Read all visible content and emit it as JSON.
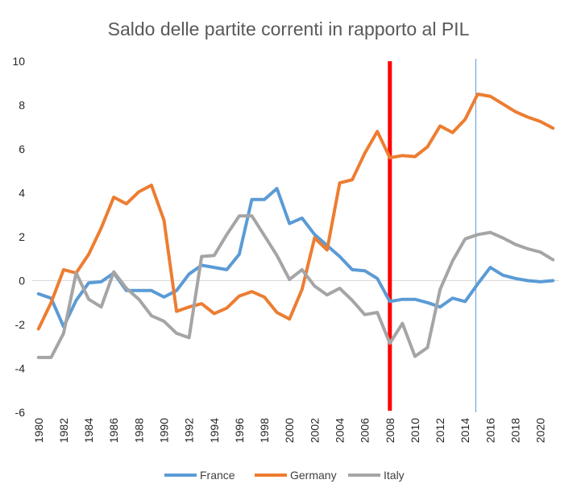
{
  "chart_data": {
    "type": "line",
    "title": "Saldo delle partite correnti in rapporto al PIL",
    "ylim": [
      -6,
      10
    ],
    "y_ticks": [
      -6,
      -4,
      -2,
      0,
      2,
      4,
      6,
      8,
      10
    ],
    "x_tick_labels": [
      "1980",
      "1982",
      "1984",
      "1986",
      "1988",
      "1990",
      "1992",
      "1994",
      "1996",
      "1998",
      "2000",
      "2002",
      "2004",
      "2006",
      "2008",
      "2010",
      "2012",
      "2014",
      "2016",
      "2018",
      "2020"
    ],
    "x": [
      1980,
      1981,
      1982,
      1983,
      1984,
      1985,
      1986,
      1987,
      1988,
      1989,
      1990,
      1991,
      1992,
      1993,
      1994,
      1995,
      1996,
      1997,
      1998,
      1999,
      2000,
      2001,
      2002,
      2003,
      2004,
      2005,
      2006,
      2007,
      2008,
      2009,
      2010,
      2011,
      2012,
      2013,
      2014,
      2015,
      2016,
      2017,
      2018,
      2019,
      2020,
      2021
    ],
    "grid": false,
    "legend_position": "bottom",
    "series": [
      {
        "name": "France",
        "color": "#5b9bd5",
        "values": [
          -0.6,
          -0.8,
          -2.1,
          -0.9,
          -0.1,
          -0.05,
          0.35,
          -0.45,
          -0.45,
          -0.45,
          -0.75,
          -0.45,
          0.3,
          0.7,
          0.6,
          0.5,
          1.2,
          3.7,
          3.7,
          4.2,
          2.6,
          2.85,
          2.1,
          1.6,
          1.1,
          0.5,
          0.45,
          0.1,
          -0.95,
          -0.85,
          -0.85,
          -1.0,
          -1.2,
          -0.8,
          -0.95,
          -0.15,
          0.6,
          0.25,
          0.1,
          0.0,
          -0.05,
          0.0
        ]
      },
      {
        "name": "Germany",
        "color": "#ed7d31",
        "values": [
          -2.2,
          -1.0,
          0.5,
          0.35,
          1.2,
          2.4,
          3.8,
          3.5,
          4.05,
          4.35,
          2.75,
          -1.4,
          -1.2,
          -1.05,
          -1.5,
          -1.25,
          -0.7,
          -0.5,
          -0.75,
          -1.45,
          -1.75,
          -0.4,
          1.95,
          1.4,
          4.45,
          4.6,
          5.8,
          6.8,
          5.6,
          5.7,
          5.65,
          6.1,
          7.05,
          6.75,
          7.35,
          8.5,
          8.4,
          8.05,
          7.7,
          7.45,
          7.25,
          6.95
        ]
      },
      {
        "name": "Italy",
        "color": "#a5a5a5",
        "values": [
          -3.5,
          -3.5,
          -2.4,
          0.35,
          -0.85,
          -1.2,
          0.4,
          -0.35,
          -0.85,
          -1.6,
          -1.85,
          -2.4,
          -2.6,
          1.1,
          1.15,
          2.1,
          2.95,
          2.95,
          2.05,
          1.15,
          0.05,
          0.5,
          -0.25,
          -0.65,
          -0.35,
          -0.9,
          -1.55,
          -1.45,
          -2.85,
          -1.95,
          -3.45,
          -3.05,
          -0.4,
          0.9,
          1.9,
          2.1,
          2.2,
          1.95,
          1.65,
          1.45,
          1.3,
          0.95
        ]
      }
    ],
    "markers": [
      {
        "x": 2008,
        "color": "#ff0000"
      },
      {
        "x": 2014.85,
        "color": "#5b9bd5"
      }
    ]
  }
}
